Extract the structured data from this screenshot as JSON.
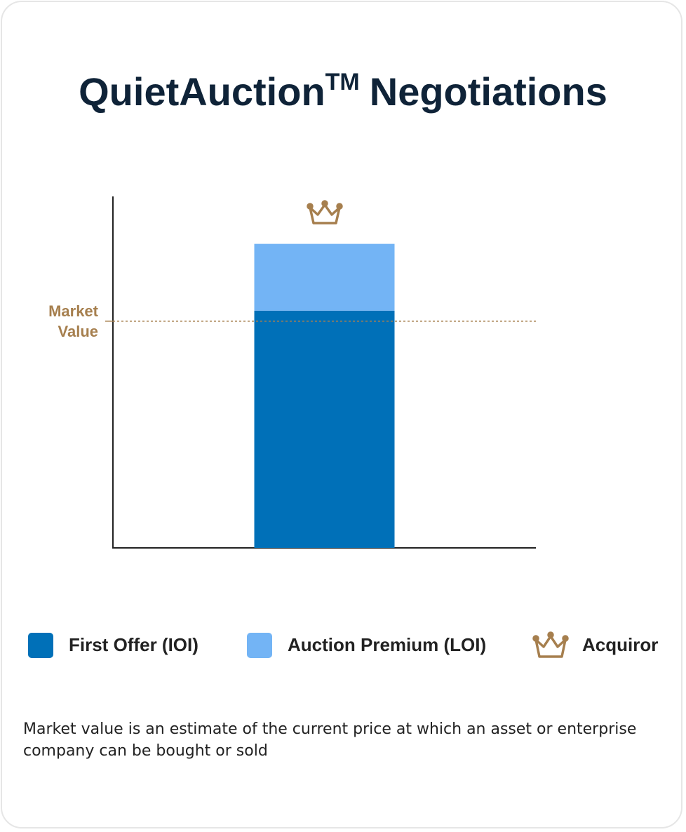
{
  "chart_data": {
    "type": "stacked_bar",
    "title": [
      "QuietAuction",
      "TM",
      "Negotiations"
    ],
    "categories": [
      null
    ],
    "series": [
      {
        "name": "First Offer (IOI)",
        "color": "#0070b8",
        "values": [
          67.5
        ]
      },
      {
        "name": "Auction Premium (LOI)",
        "color": "#73b4f5",
        "values": [
          19
        ]
      }
    ],
    "ylim": [
      0,
      100
    ],
    "reference_line": {
      "label": "Market Value",
      "value": 64.5,
      "color": "#a67f4e"
    },
    "marker_legend": "Acquiror",
    "footnote": "Market value is an estimate of the current price at which an asset or enterprise company can be bought or sold"
  }
}
